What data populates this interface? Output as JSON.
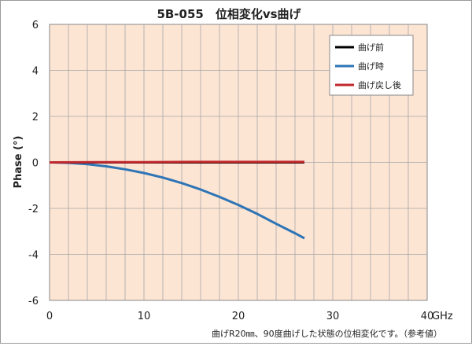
{
  "chart_data": {
    "type": "line",
    "title": "5B-055　位相変化vs曲げ",
    "xlabel": "GHz",
    "ylabel": "Phase (°)",
    "xlim": [
      0,
      40
    ],
    "ylim": [
      -6,
      6
    ],
    "x_ticks": [
      0,
      10,
      20,
      30,
      40
    ],
    "y_ticks": [
      6,
      4,
      2,
      0,
      -2,
      -4,
      -6
    ],
    "grid": true,
    "legend_position": "top-right",
    "note": "曲げR20㎜、90度曲げした状態の位相変化です。（参考値）",
    "series": [
      {
        "name": "曲げ前",
        "color": "#000000",
        "x": [
          0,
          5,
          10,
          15,
          20,
          25,
          27
        ],
        "y": [
          0,
          0,
          0,
          0,
          0,
          0,
          0
        ]
      },
      {
        "name": "曲げ時",
        "color": "#2e75b6",
        "x": [
          0,
          2,
          4,
          6,
          8,
          10,
          12,
          14,
          16,
          18,
          20,
          22,
          24,
          26,
          27
        ],
        "y": [
          0,
          -0.02,
          -0.08,
          -0.17,
          -0.3,
          -0.46,
          -0.66,
          -0.9,
          -1.18,
          -1.5,
          -1.85,
          -2.24,
          -2.67,
          -3.08,
          -3.3
        ]
      },
      {
        "name": "曲げ戻し後",
        "color": "#c0282d",
        "x": [
          0,
          5,
          10,
          15,
          20,
          25,
          27
        ],
        "y": [
          0,
          0.01,
          0.01,
          0.02,
          0.02,
          0.02,
          0.02
        ]
      }
    ]
  }
}
